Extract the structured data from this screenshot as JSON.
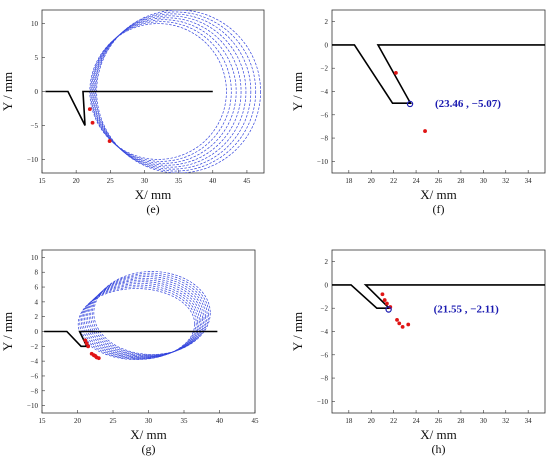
{
  "chart_data": [
    {
      "id": "e",
      "type": "line",
      "panel_label": "(e)",
      "xlabel": "X/ mm",
      "ylabel": "Y / mm",
      "xlim": [
        15,
        47.5
      ],
      "ylim": [
        -12,
        12
      ],
      "xticks": [
        15,
        20,
        25,
        30,
        35,
        40,
        45
      ],
      "yticks": [
        -10,
        -5,
        0,
        5,
        10
      ],
      "profile_x": [
        15.5,
        18.8,
        21.3,
        21.3,
        21.0,
        40.0
      ],
      "profile_y": [
        0,
        0,
        -5.0,
        -5.0,
        0,
        0
      ],
      "envelope": {
        "type": "ring_family",
        "color": "#3344dd",
        "center_start": [
          32.0,
          0.0
        ],
        "center_end": [
          35.0,
          0.0
        ],
        "radius_start": 10.0,
        "radius_end": 12.0,
        "count": 8
      },
      "points_x": [
        22.0,
        22.4,
        24.9
      ],
      "points_y": [
        -2.6,
        -4.6,
        -7.3
      ],
      "marked_point": null,
      "coord_label": ""
    },
    {
      "id": "f",
      "type": "scatter",
      "panel_label": "(f)",
      "xlabel": "X/ mm",
      "ylabel": "Y / mm",
      "xlim": [
        16.5,
        35.5
      ],
      "ylim": [
        -11,
        3
      ],
      "xticks": [
        18,
        20,
        22,
        24,
        26,
        28,
        30,
        32,
        34
      ],
      "yticks": [
        -10,
        -8,
        -6,
        -4,
        -2,
        0,
        2
      ],
      "profile_x": [
        16.5,
        18.5,
        21.9,
        23.5,
        20.6,
        35.5
      ],
      "profile_y": [
        0,
        0,
        -5.0,
        -5.0,
        0,
        0
      ],
      "envelope": null,
      "points_x": [
        22.2,
        24.8
      ],
      "points_y": [
        -2.4,
        -7.4
      ],
      "marked_point": [
        23.46,
        -5.07
      ],
      "coord_label": "(23.46 , −5.07)"
    },
    {
      "id": "g",
      "type": "line",
      "panel_label": "(g)",
      "xlabel": "X/ mm",
      "ylabel": "Y / mm",
      "xlim": [
        15,
        45
      ],
      "ylim": [
        -11,
        11
      ],
      "xticks": [
        15,
        20,
        25,
        30,
        35,
        40,
        45
      ],
      "yticks": [
        -10,
        -8,
        -6,
        -4,
        -2,
        0,
        2,
        4,
        6,
        8,
        10
      ],
      "profile_x": [
        15.3,
        18.5,
        20.5,
        21.3,
        20.3,
        39.7
      ],
      "profile_y": [
        0,
        0,
        -2.0,
        -2.0,
        0,
        0
      ],
      "envelope": {
        "type": "ellipse_family",
        "color": "#3344dd",
        "center_start": [
          28.3,
          1.0
        ],
        "center_end": [
          30.5,
          2.5
        ],
        "rx": 8.2,
        "ry_start": 4.8,
        "ry_end": 5.6,
        "count": 11
      },
      "points_x": [
        21.1,
        21.3,
        21.5,
        22.0,
        22.3,
        22.7,
        23.0,
        22.5
      ],
      "points_y": [
        -1.2,
        -1.6,
        -2.0,
        -3.0,
        -3.2,
        -3.5,
        -3.6,
        -3.3
      ],
      "marked_point": null,
      "coord_label": ""
    },
    {
      "id": "h",
      "type": "scatter",
      "panel_label": "(h)",
      "xlabel": "X/ mm",
      "ylabel": "Y / mm",
      "xlim": [
        16.5,
        35.5
      ],
      "ylim": [
        -11,
        3
      ],
      "xticks": [
        18,
        20,
        22,
        24,
        26,
        28,
        30,
        32,
        34
      ],
      "yticks": [
        -10,
        -8,
        -6,
        -4,
        -2,
        0,
        2
      ],
      "profile_x": [
        16.5,
        18.2,
        20.5,
        21.6,
        19.5,
        35.5
      ],
      "profile_y": [
        0,
        0,
        -2.0,
        -2.0,
        0,
        0
      ],
      "envelope": null,
      "points_x": [
        21.0,
        21.2,
        21.4,
        21.7,
        22.3,
        22.5,
        22.8,
        23.3
      ],
      "points_y": [
        -0.8,
        -1.3,
        -1.6,
        -1.9,
        -3.0,
        -3.3,
        -3.6,
        -3.4
      ],
      "marked_point": [
        21.55,
        -2.11
      ],
      "coord_label": "(21.55 , −2.11)"
    }
  ]
}
